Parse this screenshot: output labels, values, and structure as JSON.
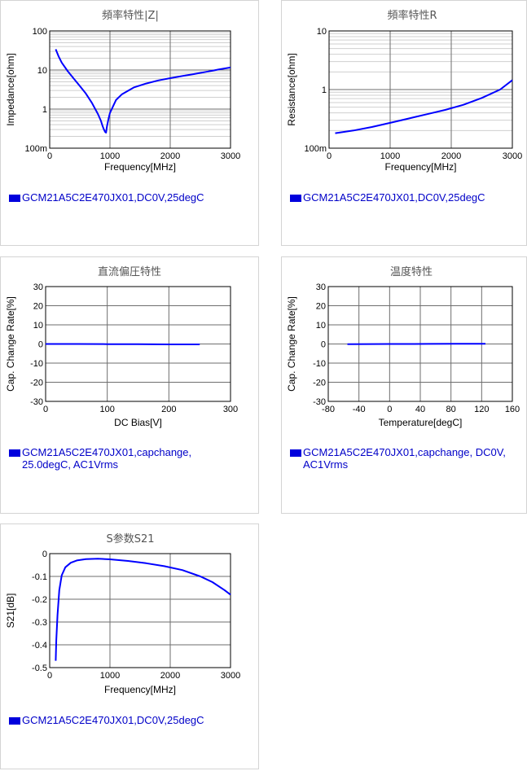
{
  "chart_data": [
    {
      "id": "impedance",
      "type": "line",
      "title": "頻率特性|Z|",
      "xlabel": "Frequency[MHz]",
      "ylabel": "Impedance[ohm]",
      "xscale": "linear",
      "yscale": "log",
      "xlim": [
        0,
        3000
      ],
      "ylim": [
        0.1,
        100
      ],
      "xticks": [
        0,
        1000,
        2000,
        3000
      ],
      "xtick_labels": [
        "0",
        "1000",
        "2000",
        "3000"
      ],
      "yticks": [
        100,
        10,
        1,
        0.1
      ],
      "ytick_labels": [
        "100",
        "10",
        "1",
        "100m"
      ],
      "grid": true,
      "series": [
        {
          "name": "GCM21A5C2E470JX01,DC0V,25degC",
          "color": "#0000ff",
          "x": [
            100,
            150,
            200,
            300,
            400,
            500,
            600,
            700,
            800,
            850,
            880,
            900,
            920,
            935,
            950,
            980,
            1000,
            1100,
            1200,
            1400,
            1600,
            1800,
            2000,
            2200,
            2400,
            2600,
            2800,
            3000
          ],
          "y": [
            34,
            22,
            15.5,
            9.3,
            6.0,
            3.9,
            2.5,
            1.45,
            0.75,
            0.5,
            0.36,
            0.3,
            0.26,
            0.25,
            0.36,
            0.6,
            0.8,
            1.7,
            2.4,
            3.6,
            4.5,
            5.4,
            6.2,
            7.0,
            7.9,
            9.0,
            10.3,
            11.6
          ]
        }
      ]
    },
    {
      "id": "resistance",
      "type": "line",
      "title": "頻率特性R",
      "xlabel": "Frequency[MHz]",
      "ylabel": "Resistance[ohm]",
      "xscale": "linear",
      "yscale": "log",
      "xlim": [
        0,
        3000
      ],
      "ylim": [
        0.1,
        10
      ],
      "xticks": [
        0,
        1000,
        2000,
        3000
      ],
      "xtick_labels": [
        "0",
        "1000",
        "2000",
        "3000"
      ],
      "yticks": [
        10,
        1,
        0.1
      ],
      "ytick_labels": [
        "10",
        "1",
        "100m"
      ],
      "grid": true,
      "series": [
        {
          "name": "GCM21A5C2E470JX01,DC0V,25degC",
          "color": "#0000ff",
          "x": [
            100,
            400,
            700,
            1000,
            1300,
            1600,
            1900,
            2200,
            2500,
            2800,
            3000
          ],
          "y": [
            0.18,
            0.2,
            0.23,
            0.27,
            0.32,
            0.38,
            0.45,
            0.55,
            0.72,
            1.0,
            1.45
          ]
        }
      ]
    },
    {
      "id": "dc-bias",
      "type": "line",
      "title": "直流偏圧特性",
      "xlabel": "DC Bias[V]",
      "ylabel": "Cap. Change Rate[%]",
      "xscale": "linear",
      "yscale": "linear",
      "xlim": [
        0,
        300
      ],
      "ylim": [
        -30,
        30
      ],
      "xticks": [
        0,
        100,
        200,
        300
      ],
      "xtick_labels": [
        "0",
        "100",
        "200",
        "300"
      ],
      "yticks": [
        30,
        20,
        10,
        0,
        -10,
        -20,
        -30
      ],
      "ytick_labels": [
        "30",
        "20",
        "10",
        "0",
        "-10",
        "-20",
        "-30"
      ],
      "grid": true,
      "series": [
        {
          "name": "GCM21A5C2E470JX01,capchange, 25.0degC, AC1Vrms",
          "color": "#0000ff",
          "x": [
            0,
            50,
            100,
            150,
            200,
            250
          ],
          "y": [
            0,
            0,
            -0.1,
            -0.1,
            -0.2,
            -0.2
          ]
        }
      ]
    },
    {
      "id": "temperature",
      "type": "line",
      "title": "温度特性",
      "xlabel": "Temperature[degC]",
      "ylabel": "Cap. Change Rate[%]",
      "xscale": "linear",
      "yscale": "linear",
      "xlim": [
        -80,
        160
      ],
      "ylim": [
        -30,
        30
      ],
      "xticks": [
        -80,
        -40,
        0,
        40,
        80,
        120,
        160
      ],
      "xtick_labels": [
        "-80",
        "-40",
        "0",
        "40",
        "80",
        "120",
        "160"
      ],
      "yticks": [
        30,
        20,
        10,
        0,
        -10,
        -20,
        -30
      ],
      "ytick_labels": [
        "30",
        "20",
        "10",
        "0",
        "-10",
        "-20",
        "-30"
      ],
      "grid": true,
      "series": [
        {
          "name": "GCM21A5C2E470JX01,capchange, DC0V, AC1Vrms",
          "color": "#0000ff",
          "x": [
            -55,
            -25,
            0,
            25,
            50,
            85,
            125
          ],
          "y": [
            -0.1,
            -0.05,
            0,
            0,
            0.05,
            0.1,
            0.1
          ]
        }
      ]
    },
    {
      "id": "s21",
      "type": "line",
      "title": "S参数S21",
      "xlabel": "Frequency[MHz]",
      "ylabel": "S21[dB]",
      "xscale": "linear",
      "yscale": "linear",
      "xlim": [
        0,
        3000
      ],
      "ylim": [
        -0.5,
        0
      ],
      "xticks": [
        0,
        1000,
        2000,
        3000
      ],
      "xtick_labels": [
        "0",
        "1000",
        "2000",
        "3000"
      ],
      "yticks": [
        0,
        -0.1,
        -0.2,
        -0.3,
        -0.4,
        -0.5
      ],
      "ytick_labels": [
        "0",
        "-0.1",
        "-0.2",
        "-0.3",
        "-0.4",
        "-0.5"
      ],
      "grid": true,
      "series": [
        {
          "name": "GCM21A5C2E470JX01,DC0V,25degC",
          "color": "#0000ff",
          "x": [
            100,
            110,
            130,
            160,
            200,
            260,
            350,
            450,
            600,
            800,
            1000,
            1300,
            1600,
            1900,
            2200,
            2500,
            2700,
            2900,
            3000
          ],
          "y": [
            -0.47,
            -0.38,
            -0.27,
            -0.16,
            -0.095,
            -0.06,
            -0.04,
            -0.03,
            -0.024,
            -0.022,
            -0.025,
            -0.032,
            -0.042,
            -0.055,
            -0.072,
            -0.1,
            -0.125,
            -0.16,
            -0.18
          ]
        }
      ]
    }
  ]
}
